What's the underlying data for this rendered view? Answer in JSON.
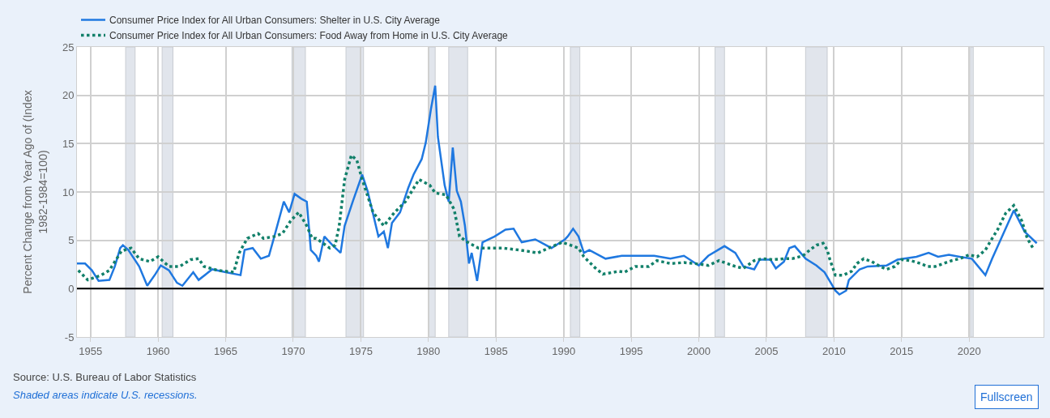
{
  "chart_data": {
    "type": "line",
    "ylabel": "Percent Change from Year Ago of (Index 1982-1984=100)",
    "xlim": [
      1954.0,
      2025.5
    ],
    "xticks": [
      1955,
      1960,
      1965,
      1970,
      1975,
      1980,
      1985,
      1990,
      1995,
      2000,
      2005,
      2010,
      2015,
      2020
    ],
    "ylim": [
      -5,
      25
    ],
    "yticks": [
      -5,
      0,
      5,
      10,
      15,
      20,
      25
    ],
    "grid": true,
    "legend": "top left",
    "series": [
      {
        "name": "Consumer Price Index for All Urban Consumers: Shelter in U.S. City Average",
        "color": "#1f78e0",
        "line_style": "solid",
        "x": [
          1954.0,
          1954.6,
          1955.1,
          1955.6,
          1956.4,
          1956.8,
          1957.2,
          1957.4,
          1957.8,
          1958.6,
          1959.2,
          1959.8,
          1960.2,
          1960.8,
          1961.4,
          1961.8,
          1962.6,
          1963.0,
          1964.0,
          1965.0,
          1966.1,
          1966.4,
          1967.0,
          1967.6,
          1968.2,
          1968.6,
          1969.3,
          1969.7,
          1970.1,
          1970.6,
          1971.0,
          1971.3,
          1971.7,
          1971.9,
          1972.3,
          1972.9,
          1973.5,
          1973.8,
          1974.4,
          1975.1,
          1975.5,
          1976.3,
          1976.7,
          1977.0,
          1977.3,
          1977.9,
          1978.5,
          1978.9,
          1979.5,
          1979.8,
          1980.2,
          1980.5,
          1980.7,
          1981.2,
          1981.5,
          1981.8,
          1982.1,
          1982.4,
          1982.7,
          1983.0,
          1983.2,
          1983.6,
          1984.0,
          1984.9,
          1985.7,
          1986.3,
          1986.9,
          1987.9,
          1989.1,
          1990.1,
          1990.3,
          1990.7,
          1991.1,
          1991.5,
          1991.9,
          1993.1,
          1994.3,
          1995.5,
          1996.7,
          1997.9,
          1998.9,
          2000.0,
          2000.7,
          2001.9,
          2002.7,
          2003.3,
          2004.1,
          2004.5,
          2005.3,
          2005.7,
          2006.3,
          2006.7,
          2007.1,
          2007.9,
          2008.7,
          2009.3,
          2010.1,
          2010.4,
          2010.9,
          2011.1,
          2011.9,
          2012.5,
          2013.9,
          2014.7,
          2016.1,
          2017.0,
          2017.7,
          2018.5,
          2019.3,
          2020.2,
          2021.2,
          2021.7,
          2022.5,
          2023.3,
          2024.1,
          2025.0
        ],
        "values": [
          2.6,
          2.6,
          1.9,
          0.8,
          0.9,
          2.3,
          4.2,
          4.5,
          4.0,
          2.3,
          0.3,
          1.5,
          2.4,
          1.9,
          0.6,
          0.3,
          1.7,
          0.9,
          2.0,
          1.7,
          1.4,
          4.0,
          4.2,
          3.1,
          3.4,
          5.4,
          9.0,
          7.9,
          9.8,
          9.3,
          9.0,
          4.0,
          3.4,
          2.8,
          5.4,
          4.5,
          3.7,
          6.5,
          9.0,
          11.8,
          10.1,
          5.4,
          5.9,
          4.2,
          6.8,
          7.9,
          10.4,
          11.8,
          13.4,
          15.1,
          18.7,
          21.0,
          15.7,
          10.7,
          9.0,
          14.6,
          10.1,
          9.0,
          6.5,
          2.6,
          3.7,
          0.8,
          4.8,
          5.4,
          6.1,
          6.2,
          4.8,
          5.1,
          4.2,
          5.1,
          5.4,
          6.2,
          5.4,
          3.7,
          4.0,
          3.1,
          3.4,
          3.4,
          3.4,
          3.1,
          3.4,
          2.4,
          3.4,
          4.4,
          3.7,
          2.3,
          2.0,
          3.0,
          3.0,
          2.1,
          2.8,
          4.2,
          4.4,
          3.1,
          2.4,
          1.7,
          -0.2,
          -0.6,
          -0.2,
          0.9,
          2.0,
          2.3,
          2.4,
          3.0,
          3.3,
          3.7,
          3.3,
          3.5,
          3.3,
          3.1,
          1.4,
          3.1,
          5.6,
          8.1,
          5.9,
          4.7
        ]
      },
      {
        "name": "Consumer Price Index for All Urban Consumers: Food Away from Home in U.S. City Average",
        "color": "#12806a",
        "line_style": "dotted",
        "x": [
          1954.1,
          1954.8,
          1955.8,
          1956.4,
          1957.3,
          1958.0,
          1958.6,
          1959.4,
          1960.0,
          1960.8,
          1961.6,
          1962.4,
          1963.0,
          1963.4,
          1964.4,
          1965.6,
          1966.0,
          1966.6,
          1967.4,
          1967.8,
          1968.6,
          1969.2,
          1969.8,
          1970.4,
          1971.0,
          1971.4,
          1971.7,
          1972.7,
          1973.1,
          1973.4,
          1973.8,
          1974.3,
          1974.7,
          1975.1,
          1975.9,
          1976.7,
          1977.5,
          1978.3,
          1979.3,
          1980.1,
          1980.5,
          1981.3,
          1981.9,
          1982.3,
          1982.9,
          1983.7,
          1984.5,
          1985.5,
          1986.7,
          1988.1,
          1988.9,
          1989.9,
          1991.1,
          1991.5,
          1992.3,
          1992.9,
          1994.1,
          1994.5,
          1995.3,
          1996.3,
          1996.9,
          1997.9,
          1998.9,
          1999.7,
          2000.7,
          2001.5,
          2002.7,
          2003.3,
          2004.1,
          2004.7,
          2005.5,
          2006.3,
          2006.9,
          2007.7,
          2008.3,
          2008.7,
          2009.2,
          2009.5,
          2009.7,
          2010.1,
          2010.7,
          2011.3,
          2011.7,
          2012.2,
          2012.8,
          2013.4,
          2013.9,
          2014.5,
          2015.0,
          2015.7,
          2016.4,
          2016.9,
          2017.5,
          2018.1,
          2018.7,
          2019.3,
          2020.0,
          2020.6,
          2021.2,
          2021.7,
          2022.1,
          2022.7,
          2023.3,
          2023.9,
          2024.3,
          2024.8
        ],
        "values": [
          1.9,
          0.9,
          1.4,
          1.9,
          3.9,
          4.2,
          3.1,
          2.8,
          3.3,
          2.3,
          2.3,
          3.0,
          3.1,
          2.3,
          1.9,
          1.7,
          3.7,
          5.2,
          5.7,
          5.2,
          5.4,
          5.7,
          7.0,
          7.9,
          6.5,
          5.2,
          5.2,
          4.2,
          4.5,
          6.5,
          11.3,
          13.8,
          13.3,
          11.3,
          7.9,
          6.5,
          7.9,
          9.0,
          11.3,
          10.7,
          9.9,
          9.7,
          8.2,
          5.4,
          4.8,
          4.2,
          4.2,
          4.2,
          4.0,
          3.7,
          4.2,
          4.8,
          4.2,
          3.3,
          2.2,
          1.5,
          1.8,
          1.7,
          2.3,
          2.3,
          2.9,
          2.6,
          2.7,
          2.6,
          2.4,
          2.9,
          2.3,
          2.1,
          2.9,
          3.1,
          3.0,
          3.1,
          3.1,
          3.4,
          4.1,
          4.5,
          4.7,
          4.0,
          3.0,
          1.4,
          1.4,
          1.8,
          2.6,
          3.1,
          2.8,
          2.3,
          2.0,
          2.3,
          3.0,
          2.9,
          2.6,
          2.3,
          2.3,
          2.6,
          2.9,
          3.1,
          3.5,
          3.3,
          4.0,
          5.2,
          6.1,
          7.8,
          8.6,
          7.0,
          5.2,
          4.0
        ]
      }
    ],
    "ref_lines": [
      {
        "axis": "y",
        "value": 0,
        "color": "#000000"
      }
    ],
    "bands": [
      {
        "axis": "x",
        "from": 1957.6,
        "to": 1958.3,
        "color": "#e1e5ec"
      },
      {
        "axis": "x",
        "from": 1960.3,
        "to": 1961.1,
        "color": "#e1e5ec"
      },
      {
        "axis": "x",
        "from": 1969.9,
        "to": 1970.9,
        "color": "#e1e5ec"
      },
      {
        "axis": "x",
        "from": 1973.9,
        "to": 1975.2,
        "color": "#e1e5ec"
      },
      {
        "axis": "x",
        "from": 1980.0,
        "to": 1980.5,
        "color": "#e1e5ec"
      },
      {
        "axis": "x",
        "from": 1981.5,
        "to": 1982.9,
        "color": "#e1e5ec"
      },
      {
        "axis": "x",
        "from": 1990.5,
        "to": 1991.2,
        "color": "#e1e5ec"
      },
      {
        "axis": "x",
        "from": 2001.2,
        "to": 2001.9,
        "color": "#e1e5ec"
      },
      {
        "axis": "x",
        "from": 2007.9,
        "to": 2009.5,
        "color": "#e1e5ec"
      },
      {
        "axis": "x",
        "from": 2020.1,
        "to": 2020.3,
        "color": "#e1e5ec"
      }
    ],
    "annotations": [
      "Source: U.S. Bureau of Labor Statistics",
      "Shaded areas indicate U.S. recessions.",
      "Fullscreen"
    ]
  }
}
